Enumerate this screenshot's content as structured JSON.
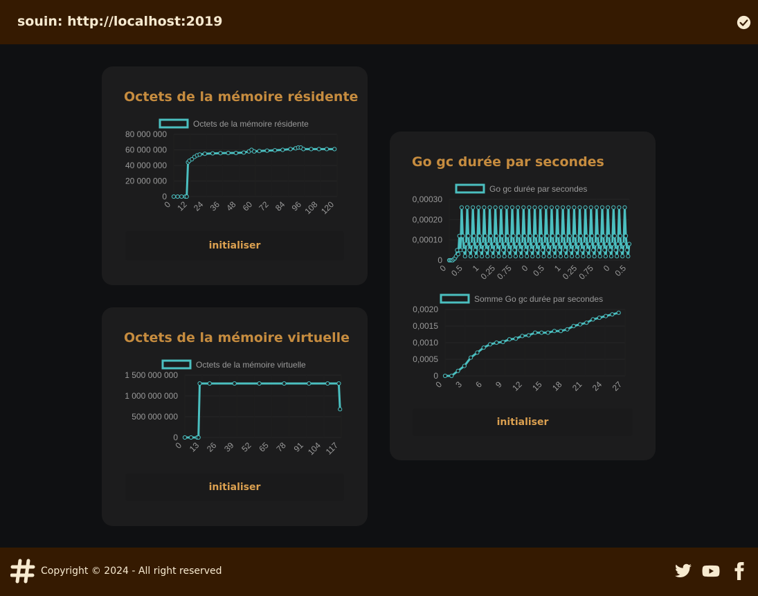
{
  "header": {
    "title": "souin: http://localhost:2019",
    "status_icon": "check-circle-icon"
  },
  "footer": {
    "copyright": "Copyright © 2024 - All right reserved",
    "logo_icon": "hashtag-logo-icon",
    "social": [
      "twitter-icon",
      "youtube-icon",
      "facebook-icon"
    ]
  },
  "colors": {
    "line": "#4bbfc0",
    "title": "#c68c3f",
    "button": "#dba050",
    "bar": "#351a01"
  },
  "cards": {
    "resident": {
      "title": "Octets de la mémoire résidente",
      "reset_label": "initialiser"
    },
    "virtual": {
      "title": "Octets de la mémoire virtuelle",
      "reset_label": "initialiser"
    },
    "gc": {
      "title": "Go gc durée par secondes",
      "reset_label": "initialiser"
    }
  },
  "chart_data": [
    {
      "type": "line",
      "legend": "Octets de la mémoire résidente",
      "yticks": [
        "80 000 000",
        "60 000 000",
        "40 000 000",
        "20 000 000",
        "0"
      ],
      "ylim": [
        0,
        80000000
      ],
      "xticks": [
        "0",
        "12",
        "24",
        "36",
        "48",
        "60",
        "72",
        "84",
        "96",
        "108",
        "120"
      ],
      "xlim": [
        0,
        126
      ],
      "x": [
        0,
        3,
        6,
        9,
        10,
        11,
        12,
        14,
        16,
        18,
        20,
        24,
        30,
        36,
        42,
        48,
        54,
        58,
        60,
        62,
        66,
        72,
        78,
        84,
        90,
        94,
        96,
        98,
        100,
        106,
        112,
        118,
        124
      ],
      "values": [
        0,
        0,
        0,
        0,
        0,
        44000000,
        46000000,
        48000000,
        51000000,
        53000000,
        54000000,
        55000000,
        55500000,
        55800000,
        56000000,
        56000000,
        56500000,
        58000000,
        60000000,
        58000000,
        58500000,
        59000000,
        59500000,
        60000000,
        61000000,
        62000000,
        63000000,
        63000000,
        61000000,
        61000000,
        61000000,
        61000000,
        61000000
      ]
    },
    {
      "type": "line",
      "legend": "Octets de la mémoire virtuelle",
      "yticks": [
        "1 500 000 000",
        "1 000 000 000",
        "500 000 000",
        "0"
      ],
      "ylim": [
        0,
        1500000000
      ],
      "xticks": [
        "0",
        "13",
        "26",
        "39",
        "52",
        "65",
        "78",
        "91",
        "104",
        "117"
      ],
      "xlim": [
        0,
        126
      ],
      "x": [
        0,
        5,
        10,
        11,
        12,
        20,
        40,
        60,
        80,
        100,
        115,
        124,
        125
      ],
      "values": [
        0,
        0,
        0,
        0,
        1300000000,
        1300000000,
        1300000000,
        1300000000,
        1300000000,
        1300000000,
        1300000000,
        1300000000,
        680000000
      ]
    },
    {
      "type": "line",
      "legend": "Go gc durée par secondes",
      "yticks": [
        "0,00030",
        "0,00020",
        "0,00010",
        "0"
      ],
      "ylim": [
        0,
        0.0003
      ],
      "xticks": [
        "0",
        "0.5",
        "1",
        "0.25",
        "0.75",
        "0",
        "0.5",
        "1",
        "0.25",
        "0.75",
        "0",
        "0.5"
      ],
      "pattern": [
        0.00026,
        0.00012,
        5e-05,
        2e-05,
        8e-05
      ],
      "lead": [
        0,
        0,
        0,
        0,
        5e-06,
        1e-05,
        2e-05,
        5e-05,
        3e-05,
        0.00012,
        5e-05
      ]
    },
    {
      "type": "line",
      "legend": "Somme Go gc durée par secondes",
      "yticks": [
        "0,0020",
        "0,0015",
        "0,0010",
        "0,0005",
        "0"
      ],
      "ylim": [
        0,
        0.002
      ],
      "xticks": [
        "0",
        "3",
        "6",
        "9",
        "12",
        "15",
        "18",
        "21",
        "24",
        "27"
      ],
      "xlim": [
        0,
        28
      ],
      "x": [
        0,
        1,
        2,
        3,
        4,
        5,
        6,
        7,
        8,
        9,
        10,
        11,
        12,
        13,
        14,
        15,
        16,
        17,
        18,
        19,
        20,
        21,
        22,
        23,
        24,
        25,
        26,
        27
      ],
      "values": [
        0,
        0,
        0.00015,
        0.0003,
        0.00055,
        0.0007,
        0.00085,
        0.00095,
        0.001,
        0.00102,
        0.0011,
        0.00112,
        0.0012,
        0.00122,
        0.0013,
        0.0013,
        0.0013,
        0.00135,
        0.00135,
        0.0014,
        0.0015,
        0.00155,
        0.0016,
        0.0017,
        0.00175,
        0.0018,
        0.00185,
        0.0019
      ]
    }
  ]
}
